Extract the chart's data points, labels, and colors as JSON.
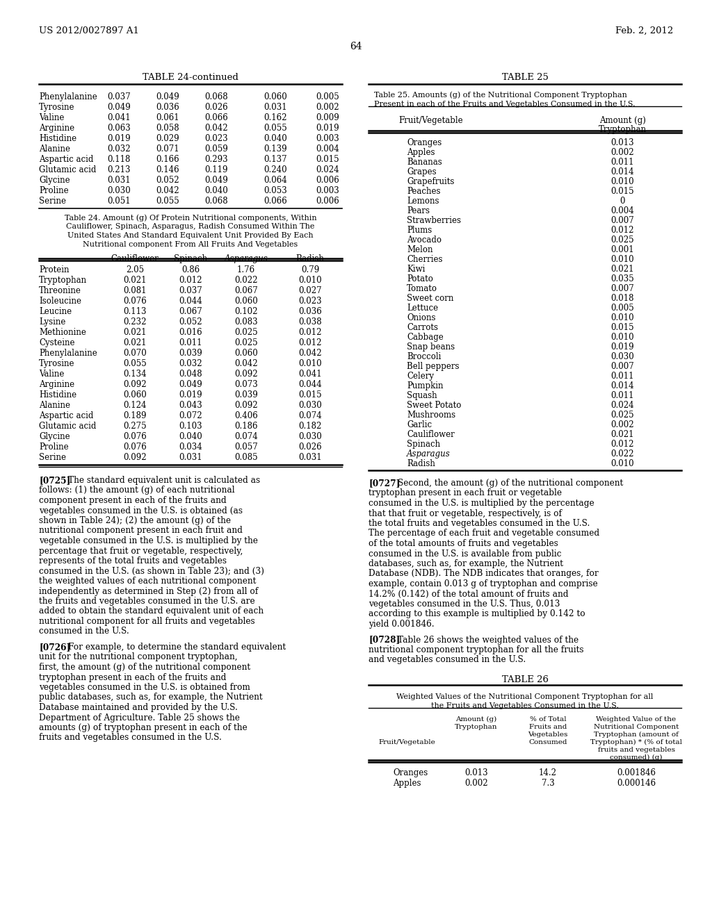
{
  "background_color": "#ffffff",
  "page_header_left": "US 2012/0027897 A1",
  "page_header_right": "Feb. 2, 2012",
  "page_number": "64",
  "table24c_title": "TABLE 24-continued",
  "table24c_caption_lines": [
    "Table 24. Amount (g) Of Protein Nutritional components, Within",
    "Cauliflower, Spinach, Asparagus, Radish Consumed Within The",
    "United States And Standard Equivalent Unit Provided By Each",
    "Nutritional component From All Fruits And Vegetables"
  ],
  "table24c_col_headers": [
    "",
    "Cauliflower",
    "Spinach",
    "Asparagus",
    "Radish"
  ],
  "table24c_top_rows": [
    [
      "Phenylalanine",
      "0.037",
      "0.049",
      "0.068",
      "0.060",
      "0.005"
    ],
    [
      "Tyrosine",
      "0.049",
      "0.036",
      "0.026",
      "0.031",
      "0.002"
    ],
    [
      "Valine",
      "0.041",
      "0.061",
      "0.066",
      "0.162",
      "0.009"
    ],
    [
      "Arginine",
      "0.063",
      "0.058",
      "0.042",
      "0.055",
      "0.019"
    ],
    [
      "Histidine",
      "0.019",
      "0.029",
      "0.023",
      "0.040",
      "0.003"
    ],
    [
      "Alanine",
      "0.032",
      "0.071",
      "0.059",
      "0.139",
      "0.004"
    ],
    [
      "Aspartic acid",
      "0.118",
      "0.166",
      "0.293",
      "0.137",
      "0.015"
    ],
    [
      "Glutamic acid",
      "0.213",
      "0.146",
      "0.119",
      "0.240",
      "0.024"
    ],
    [
      "Glycine",
      "0.031",
      "0.052",
      "0.049",
      "0.064",
      "0.006"
    ],
    [
      "Proline",
      "0.030",
      "0.042",
      "0.040",
      "0.053",
      "0.003"
    ],
    [
      "Serine",
      "0.051",
      "0.055",
      "0.068",
      "0.066",
      "0.006"
    ]
  ],
  "table24c_main_rows": [
    [
      "Protein",
      "2.05",
      "0.86",
      "1.76",
      "0.79"
    ],
    [
      "Tryptophan",
      "0.021",
      "0.012",
      "0.022",
      "0.010"
    ],
    [
      "Threonine",
      "0.081",
      "0.037",
      "0.067",
      "0.027"
    ],
    [
      "Isoleucine",
      "0.076",
      "0.044",
      "0.060",
      "0.023"
    ],
    [
      "Leucine",
      "0.113",
      "0.067",
      "0.102",
      "0.036"
    ],
    [
      "Lysine",
      "0.232",
      "0.052",
      "0.083",
      "0.038"
    ],
    [
      "Methionine",
      "0.021",
      "0.016",
      "0.025",
      "0.012"
    ],
    [
      "Cysteine",
      "0.021",
      "0.011",
      "0.025",
      "0.012"
    ],
    [
      "Phenylalanine",
      "0.070",
      "0.039",
      "0.060",
      "0.042"
    ],
    [
      "Tyrosine",
      "0.055",
      "0.032",
      "0.042",
      "0.010"
    ],
    [
      "Valine",
      "0.134",
      "0.048",
      "0.092",
      "0.041"
    ],
    [
      "Arginine",
      "0.092",
      "0.049",
      "0.073",
      "0.044"
    ],
    [
      "Histidine",
      "0.060",
      "0.019",
      "0.039",
      "0.015"
    ],
    [
      "Alanine",
      "0.124",
      "0.043",
      "0.092",
      "0.030"
    ],
    [
      "Aspartic acid",
      "0.189",
      "0.072",
      "0.406",
      "0.074"
    ],
    [
      "Glutamic acid",
      "0.275",
      "0.103",
      "0.186",
      "0.182"
    ],
    [
      "Glycine",
      "0.076",
      "0.040",
      "0.074",
      "0.030"
    ],
    [
      "Proline",
      "0.076",
      "0.034",
      "0.057",
      "0.026"
    ],
    [
      "Serine",
      "0.092",
      "0.031",
      "0.085",
      "0.031"
    ]
  ],
  "table25_title": "TABLE 25",
  "table25_caption_line1": "Table 25. Amounts (g) of the Nutritional Component Tryptophan",
  "table25_caption_line2": "Present in each of the Fruits and Vegetables Consumed in the U.S.",
  "table25_rows": [
    [
      "Oranges",
      "0.013"
    ],
    [
      "Apples",
      "0.002"
    ],
    [
      "Bananas",
      "0.011"
    ],
    [
      "Grapes",
      "0.014"
    ],
    [
      "Grapefruits",
      "0.010"
    ],
    [
      "Peaches",
      "0.015"
    ],
    [
      "Lemons",
      "0"
    ],
    [
      "Pears",
      "0.004"
    ],
    [
      "Strawberries",
      "0.007"
    ],
    [
      "Plums",
      "0.012"
    ],
    [
      "Avocado",
      "0.025"
    ],
    [
      "Melon",
      "0.001"
    ],
    [
      "Cherries",
      "0.010"
    ],
    [
      "Kiwi",
      "0.021"
    ],
    [
      "Potato",
      "0.035"
    ],
    [
      "Tomato",
      "0.007"
    ],
    [
      "Sweet corn",
      "0.018"
    ],
    [
      "Lettuce",
      "0.005"
    ],
    [
      "Onions",
      "0.010"
    ],
    [
      "Carrots",
      "0.015"
    ],
    [
      "Cabbage",
      "0.010"
    ],
    [
      "Snap beans",
      "0.019"
    ],
    [
      "Broccoli",
      "0.030"
    ],
    [
      "Bell peppers",
      "0.007"
    ],
    [
      "Celery",
      "0.011"
    ],
    [
      "Pumpkin",
      "0.014"
    ],
    [
      "Squash",
      "0.011"
    ],
    [
      "Sweet Potato",
      "0.024"
    ],
    [
      "Mushrooms",
      "0.025"
    ],
    [
      "Garlic",
      "0.002"
    ],
    [
      "Cauliflower",
      "0.021"
    ],
    [
      "Spinach",
      "0.012"
    ],
    [
      "Asparagus",
      "0.022"
    ],
    [
      "Radish",
      "0.010"
    ]
  ],
  "table26_title": "TABLE 26",
  "table26_caption_line1": "Weighted Values of the Nutritional Component Tryptophan for all",
  "table26_caption_line2": "the Fruits and Vegetables Consumed in the U.S.",
  "table26_rows": [
    [
      "Oranges",
      "0.013",
      "14.2",
      "0.001846"
    ],
    [
      "Apples",
      "0.002",
      "7.3",
      "0.000146"
    ]
  ],
  "para0725_tag": "[0725]",
  "para0725_text": "The standard equivalent unit is calculated as follows: (1) the amount (g) of each nutritional component present in each of the fruits and vegetables consumed in the U.S. is obtained (as shown in Table 24); (2) the amount (g) of the nutritional component present in each fruit and vegetable consumed in the U.S. is multiplied by the percentage that fruit or vegetable, respectively, represents of the total fruits and vegetables consumed in the U.S. (as shown in Table 23); and (3) the weighted values of each nutritional component independently as determined in Step (2) from all of the fruits and vegetables consumed in the U.S. are added to obtain the standard equivalent unit of each nutritional component for all fruits and vegetables consumed in the U.S.",
  "para0726_tag": "[0726]",
  "para0726_text": "For example, to determine the standard equivalent unit for the nutritional component tryptophan, first, the amount (g) of the nutritional component tryptophan present in each of the fruits and vegetables consumed in the U.S. is obtained from public databases, such as, for example, the Nutrient Database maintained and provided by the U.S. Department of Agriculture. Table 25 shows the amounts (g) of tryptophan present in each of the fruits and vegetables consumed in the U.S.",
  "para0727_tag": "[0727]",
  "para0727_text": "Second, the amount (g) of the nutritional component tryptophan present in each fruit or vegetable consumed in the U.S. is multiplied by the percentage that that fruit or vegetable, respectively, is of the total fruits and vegetables consumed in the U.S. The percentage of each fruit and vegetable consumed of the total amounts of fruits and vegetables consumed in the U.S. is available from public databases, such as, for example, the Nutrient Database (NDB). The NDB indicates that oranges, for example, contain 0.013 g of tryptophan and comprise 14.2% (0.142) of the total amount of fruits and vegetables consumed in the U.S. Thus, 0.013 according to this example is multiplied by 0.142 to yield 0.001846.",
  "para0728_tag": "[0728]",
  "para0728_text": "Table 26 shows the weighted values of the nutritional component tryptophan for all the fruits and vegetables consumed in the U.S."
}
